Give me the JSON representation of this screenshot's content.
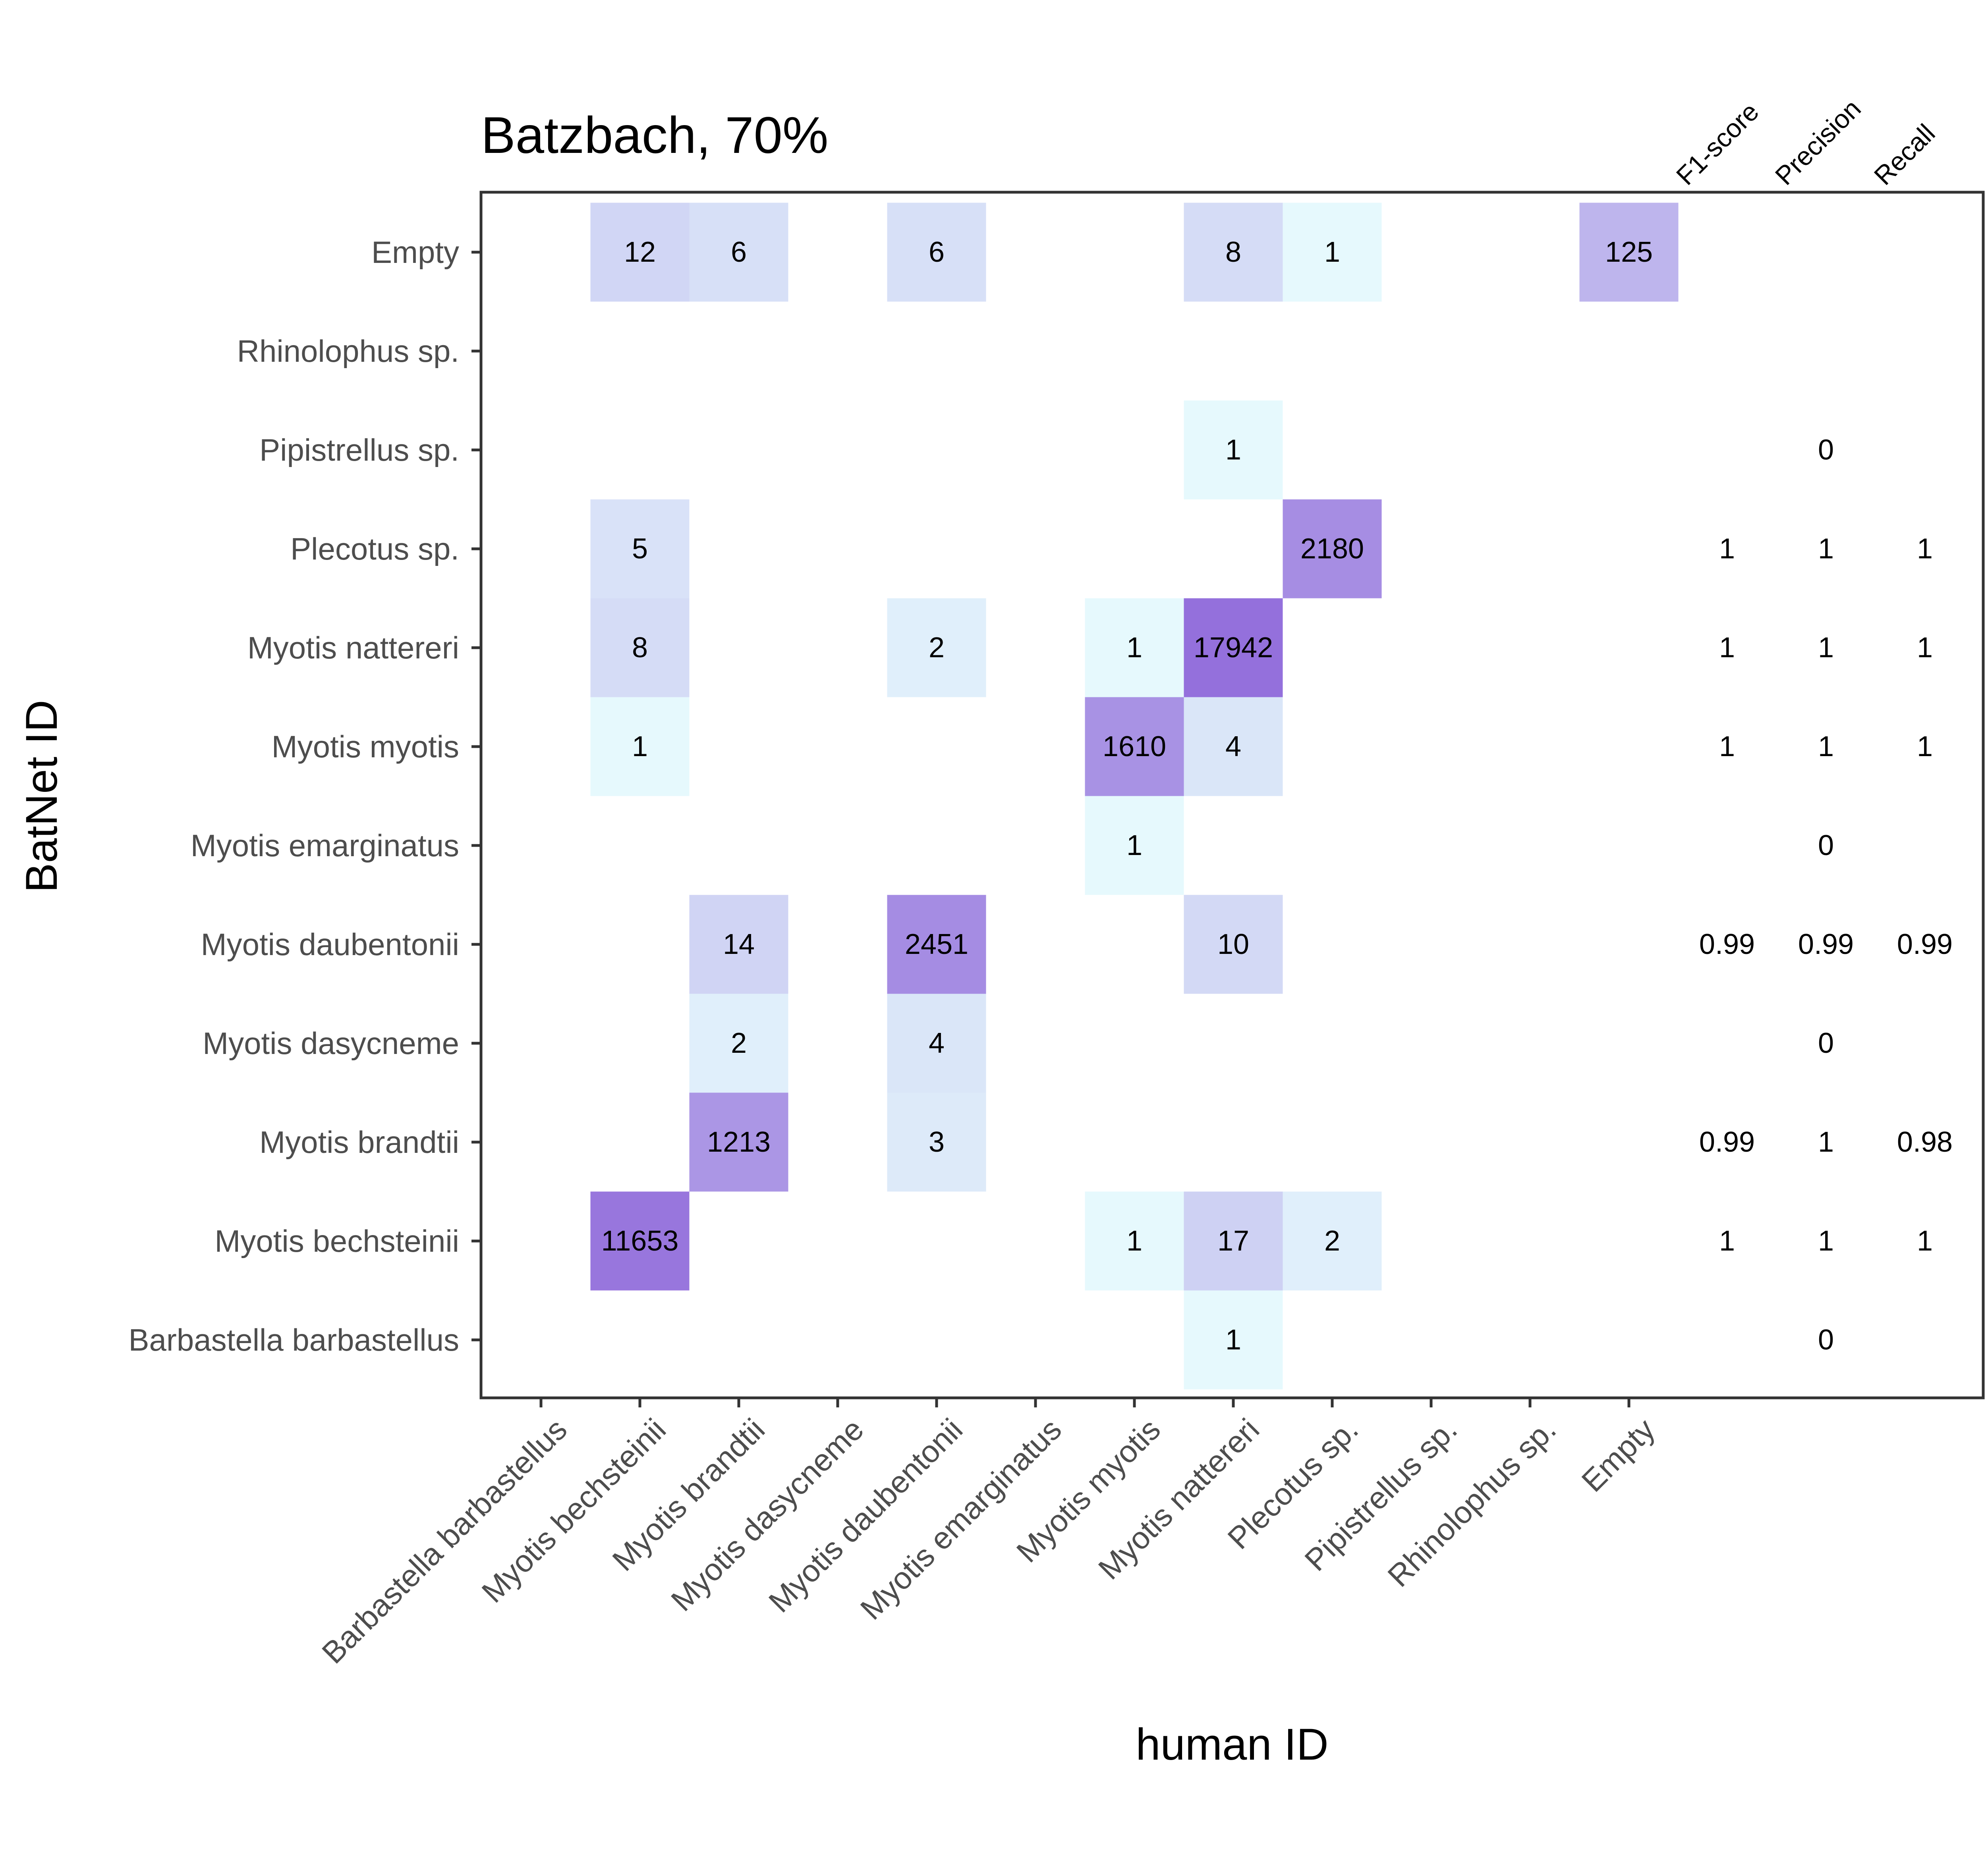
{
  "chart_data": {
    "type": "heatmap",
    "title": "Batzbach, 70%",
    "xlabel": "human ID",
    "ylabel": "BatNet ID",
    "grid": false,
    "x_categories": [
      "Barbastella barbastellus",
      "Myotis bechsteinii",
      "Myotis brandtii",
      "Myotis dasycneme",
      "Myotis daubentonii",
      "Myotis emarginatus",
      "Myotis myotis",
      "Myotis nattereri",
      "Plecotus sp.",
      "Pipistrellus sp.",
      "Rhinolophus sp.",
      "Empty"
    ],
    "y_categories": [
      "Empty",
      "Rhinolophus sp.",
      "Pipistrellus sp.",
      "Plecotus sp.",
      "Myotis nattereri",
      "Myotis myotis",
      "Myotis emarginatus",
      "Myotis daubentonii",
      "Myotis dasycneme",
      "Myotis brandtii",
      "Myotis bechsteinii",
      "Barbastella barbastellus"
    ],
    "cells": [
      {
        "x": "Myotis bechsteinii",
        "y": "Empty",
        "value": 12
      },
      {
        "x": "Myotis brandtii",
        "y": "Empty",
        "value": 6
      },
      {
        "x": "Myotis daubentonii",
        "y": "Empty",
        "value": 6
      },
      {
        "x": "Myotis nattereri",
        "y": "Empty",
        "value": 8
      },
      {
        "x": "Plecotus sp.",
        "y": "Empty",
        "value": 1
      },
      {
        "x": "Empty",
        "y": "Empty",
        "value": 125
      },
      {
        "x": "Myotis nattereri",
        "y": "Pipistrellus sp.",
        "value": 1
      },
      {
        "x": "Myotis bechsteinii",
        "y": "Plecotus sp.",
        "value": 5
      },
      {
        "x": "Plecotus sp.",
        "y": "Plecotus sp.",
        "value": 2180
      },
      {
        "x": "Myotis bechsteinii",
        "y": "Myotis nattereri",
        "value": 8
      },
      {
        "x": "Myotis daubentonii",
        "y": "Myotis nattereri",
        "value": 2
      },
      {
        "x": "Myotis myotis",
        "y": "Myotis nattereri",
        "value": 1
      },
      {
        "x": "Myotis nattereri",
        "y": "Myotis nattereri",
        "value": 17942
      },
      {
        "x": "Myotis bechsteinii",
        "y": "Myotis myotis",
        "value": 1
      },
      {
        "x": "Myotis myotis",
        "y": "Myotis myotis",
        "value": 1610
      },
      {
        "x": "Myotis nattereri",
        "y": "Myotis myotis",
        "value": 4
      },
      {
        "x": "Myotis myotis",
        "y": "Myotis emarginatus",
        "value": 1
      },
      {
        "x": "Myotis brandtii",
        "y": "Myotis daubentonii",
        "value": 14
      },
      {
        "x": "Myotis daubentonii",
        "y": "Myotis daubentonii",
        "value": 2451
      },
      {
        "x": "Myotis nattereri",
        "y": "Myotis daubentonii",
        "value": 10
      },
      {
        "x": "Myotis brandtii",
        "y": "Myotis dasycneme",
        "value": 2
      },
      {
        "x": "Myotis daubentonii",
        "y": "Myotis dasycneme",
        "value": 4
      },
      {
        "x": "Myotis brandtii",
        "y": "Myotis brandtii",
        "value": 1213
      },
      {
        "x": "Myotis daubentonii",
        "y": "Myotis brandtii",
        "value": 3
      },
      {
        "x": "Myotis bechsteinii",
        "y": "Myotis bechsteinii",
        "value": 11653
      },
      {
        "x": "Myotis myotis",
        "y": "Myotis bechsteinii",
        "value": 1
      },
      {
        "x": "Myotis nattereri",
        "y": "Myotis bechsteinii",
        "value": 17
      },
      {
        "x": "Plecotus sp.",
        "y": "Myotis bechsteinii",
        "value": 2
      },
      {
        "x": "Myotis nattereri",
        "y": "Barbastella barbastellus",
        "value": 1
      }
    ],
    "metric_headers": [
      "F1-score",
      "Precision",
      "Recall"
    ],
    "metrics": [
      {
        "y": "Pipistrellus sp.",
        "f1": "",
        "precision": "0",
        "recall": ""
      },
      {
        "y": "Plecotus sp.",
        "f1": "1",
        "precision": "1",
        "recall": "1"
      },
      {
        "y": "Myotis nattereri",
        "f1": "1",
        "precision": "1",
        "recall": "1"
      },
      {
        "y": "Myotis myotis",
        "f1": "1",
        "precision": "1",
        "recall": "1"
      },
      {
        "y": "Myotis emarginatus",
        "f1": "",
        "precision": "0",
        "recall": ""
      },
      {
        "y": "Myotis daubentonii",
        "f1": "0.99",
        "precision": "0.99",
        "recall": "0.99"
      },
      {
        "y": "Myotis dasycneme",
        "f1": "",
        "precision": "0",
        "recall": ""
      },
      {
        "y": "Myotis brandtii",
        "f1": "0.99",
        "precision": "1",
        "recall": "0.98"
      },
      {
        "y": "Myotis bechsteinii",
        "f1": "1",
        "precision": "1",
        "recall": "1"
      },
      {
        "y": "Barbastella barbastellus",
        "f1": "",
        "precision": "0",
        "recall": ""
      }
    ],
    "color_scale": {
      "type": "log",
      "low": "#e6f9fd",
      "high": "#9470dc"
    }
  }
}
